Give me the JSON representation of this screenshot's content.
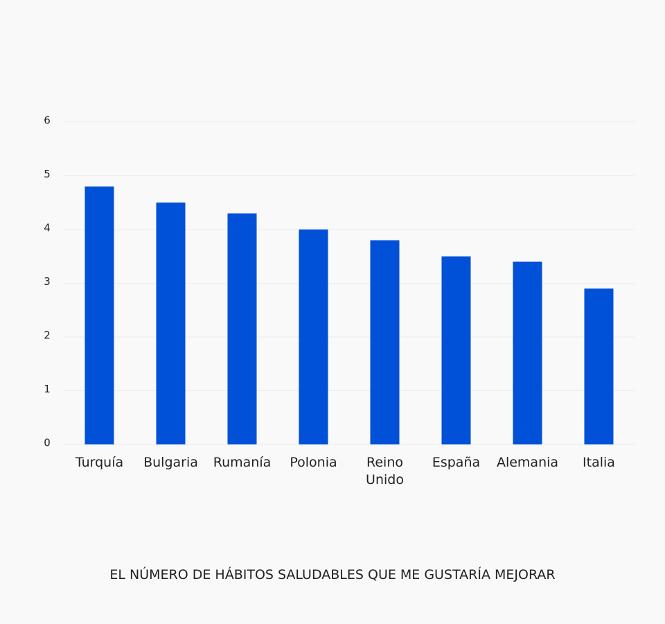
{
  "chart_data": {
    "type": "bar",
    "xlabel": "EL NÚMERO DE HÁBITOS SALUDABLES QUE ME GUSTARÍA MEJORAR",
    "categories": [
      "Turquía",
      "Bulgaria",
      "Rumanía",
      "Polonia",
      "Reino Unido",
      "España",
      "Alemania",
      "Italia"
    ],
    "values": [
      4.8,
      4.5,
      4.3,
      4.0,
      3.8,
      3.5,
      3.4,
      2.9
    ],
    "color": "#0050d8",
    "ylim": [
      0,
      6
    ],
    "yticks": [
      0,
      1,
      2,
      3,
      4,
      5,
      6
    ],
    "grid": true
  }
}
